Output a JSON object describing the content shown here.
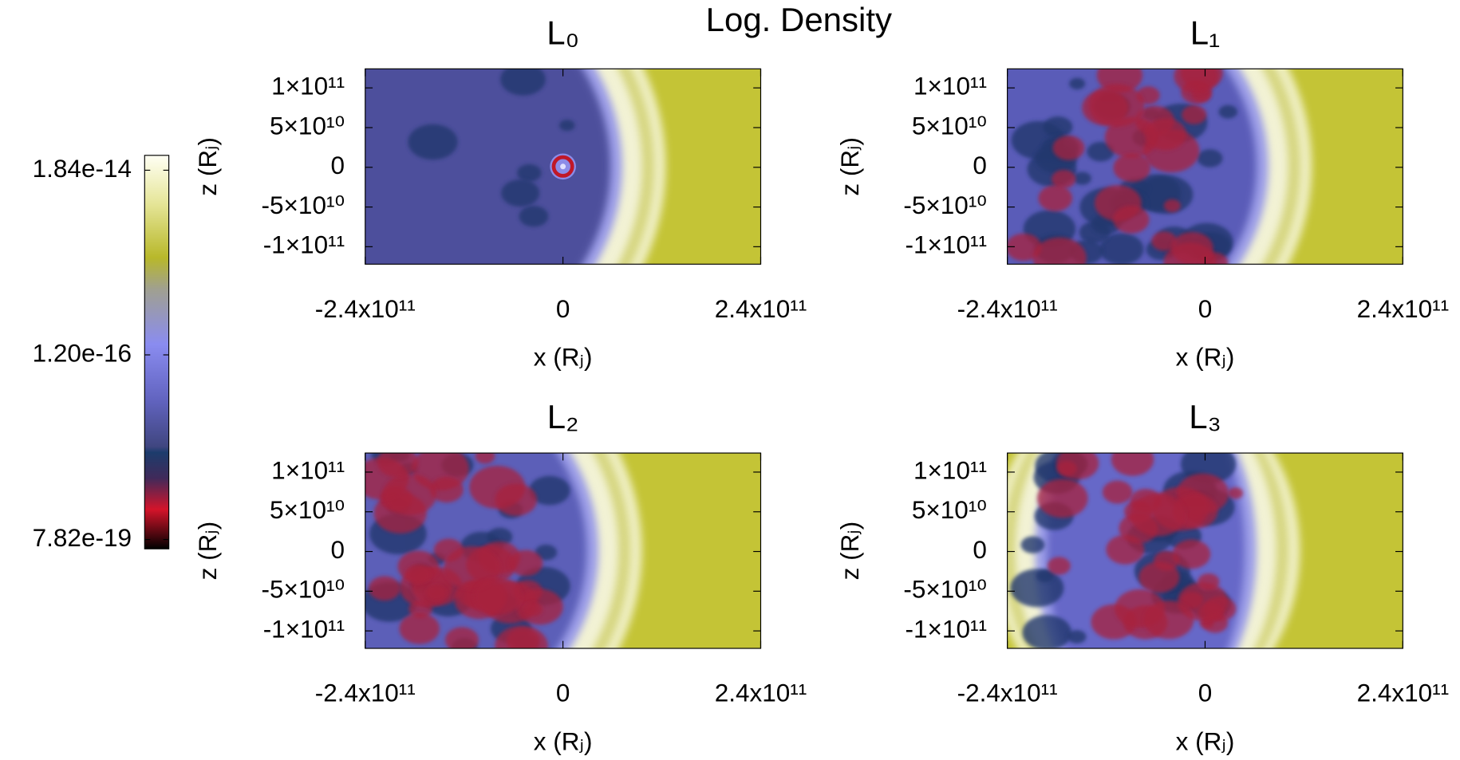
{
  "chart_data": {
    "type": "density-panels",
    "title": "Log. Density",
    "colorbar": {
      "log": true,
      "lim": [
        6.07e-19,
        2.76e-14
      ],
      "ticks": [
        1.84e-14,
        {
          "value": 1.2e-16,
          "label": "1.20e-16"
        },
        7.82e-19
      ]
    },
    "panels": [
      {
        "title": "L₀",
        "xlabel": "x (Rⱼ)",
        "ylabel": "z (Rⱼ)",
        "xlim": [
          -240000000000.0,
          240000000000.0
        ],
        "ylim": [
          -122000000000.0,
          124000000000.0
        ],
        "xticks": [
          {
            "value": -240000000000.0,
            "label": "-2.4x10¹¹"
          },
          0,
          {
            "value": 240000000000.0,
            "label": "2.4x10¹¹"
          }
        ],
        "yticks": [
          {
            "value": 100000000000.0,
            "label": "1×10¹¹"
          },
          {
            "value": 50000000000.0,
            "label": "5×10¹⁰"
          },
          0,
          {
            "value": -50000000000.0,
            "label": "-5×10¹⁰"
          },
          {
            "value": -100000000000.0,
            "label": "-1×10¹¹"
          }
        ]
      },
      {
        "title": "L₁",
        "xlabel": "x (Rⱼ)",
        "ylabel": "z (Rⱼ)",
        "xlim": [
          -240000000000.0,
          240000000000.0
        ],
        "ylim": [
          -122000000000.0,
          124000000000.0
        ],
        "xticks": [
          {
            "value": -240000000000.0,
            "label": "-2.4x10¹¹"
          },
          0,
          {
            "value": 240000000000.0,
            "label": "2.4x10¹¹"
          }
        ],
        "yticks": [
          {
            "value": 100000000000.0,
            "label": "1×10¹¹"
          },
          {
            "value": 50000000000.0,
            "label": "5×10¹⁰"
          },
          0,
          {
            "value": -50000000000.0,
            "label": "-5×10¹⁰"
          },
          {
            "value": -100000000000.0,
            "label": "-1×10¹¹"
          }
        ]
      },
      {
        "title": "L₂",
        "xlabel": "x (Rⱼ)",
        "ylabel": "z (Rⱼ)",
        "xlim": [
          -240000000000.0,
          240000000000.0
        ],
        "ylim": [
          -122000000000.0,
          124000000000.0
        ],
        "xticks": [
          {
            "value": -240000000000.0,
            "label": "-2.4x10¹¹"
          },
          0,
          {
            "value": 240000000000.0,
            "label": "2.4x10¹¹"
          }
        ],
        "yticks": [
          {
            "value": 100000000000.0,
            "label": "1×10¹¹"
          },
          {
            "value": 50000000000.0,
            "label": "5×10¹⁰"
          },
          0,
          {
            "value": -50000000000.0,
            "label": "-5×10¹⁰"
          },
          {
            "value": -100000000000.0,
            "label": "-1×10¹¹"
          }
        ]
      },
      {
        "title": "L₃",
        "xlabel": "x (Rⱼ)",
        "ylabel": "z (Rⱼ)",
        "xlim": [
          -240000000000.0,
          240000000000.0
        ],
        "ylim": [
          -122000000000.0,
          124000000000.0
        ],
        "xticks": [
          {
            "value": -240000000000.0,
            "label": "-2.4x10¹¹"
          },
          0,
          {
            "value": 240000000000.0,
            "label": "2.4x10¹¹"
          }
        ],
        "yticks": [
          {
            "value": 100000000000.0,
            "label": "1×10¹¹"
          },
          {
            "value": 50000000000.0,
            "label": "5×10¹⁰"
          },
          0,
          {
            "value": -50000000000.0,
            "label": "-5×10¹⁰"
          },
          {
            "value": -100000000000.0,
            "label": "-1×10¹¹"
          }
        ]
      }
    ]
  }
}
